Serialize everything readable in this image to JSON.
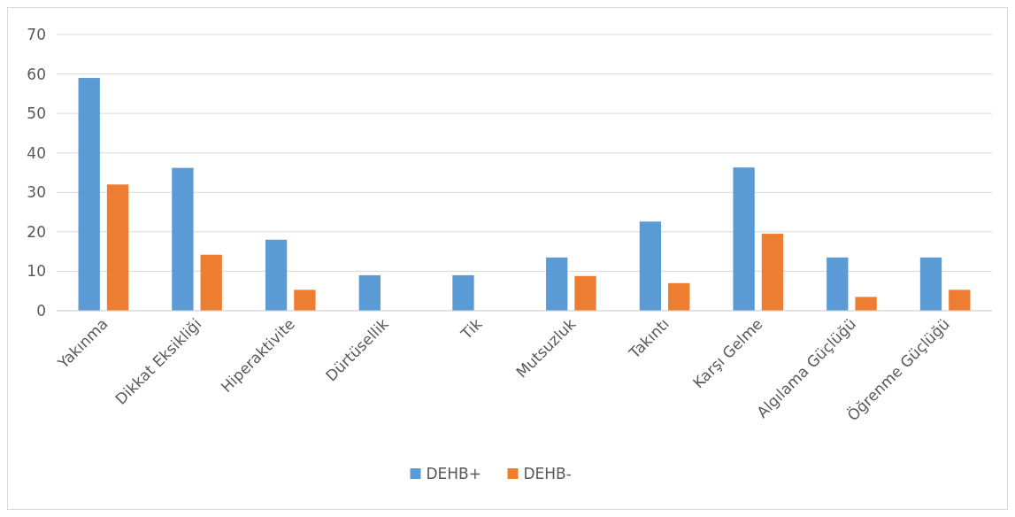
{
  "chart_data": {
    "type": "bar",
    "categories": [
      "Yakınma",
      "Dikkat Eksikliği",
      "Hiperaktivite",
      "Dürtüsellik",
      "Tik",
      "Mutsuzluk",
      "Takıntı",
      "Karşı Gelme",
      "Algılama Güçlüğü",
      "Öğrenme Güçlüğü"
    ],
    "series": [
      {
        "name": "DEHB+",
        "color": "#5b9bd5",
        "values": [
          59,
          36.2,
          18,
          9,
          9,
          13.5,
          22.6,
          36.3,
          13.5,
          13.5
        ]
      },
      {
        "name": "DEHB-",
        "color": "#ed7d31",
        "values": [
          32,
          14.2,
          5.3,
          0,
          0,
          8.8,
          7,
          19.5,
          3.5,
          5.3
        ]
      }
    ],
    "ylim": [
      0,
      70
    ],
    "yticks": [
      0,
      10,
      20,
      30,
      40,
      50,
      60,
      70
    ],
    "grid": "y",
    "legend": "bottom"
  }
}
